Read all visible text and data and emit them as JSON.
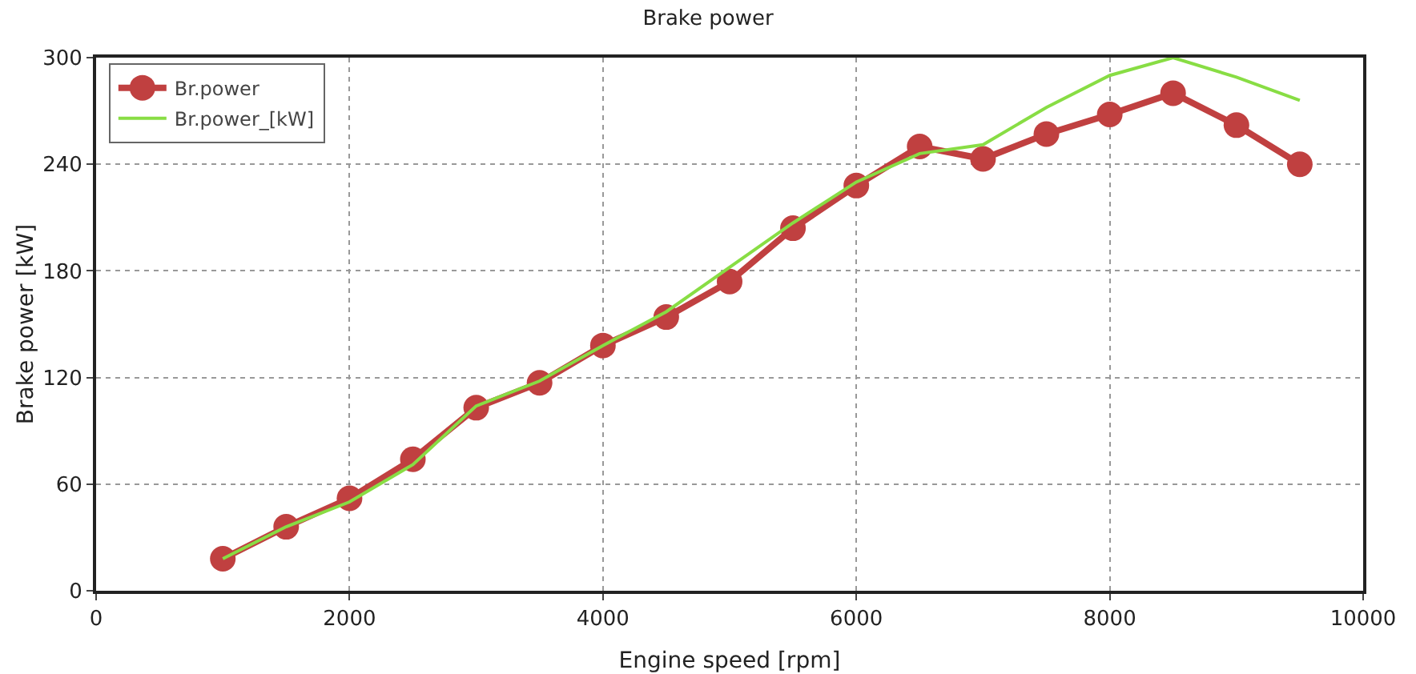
{
  "chart_data": {
    "type": "line",
    "title": "Brake power",
    "xlabel": "Engine speed [rpm]",
    "ylabel": "Brake power [kW]",
    "x": [
      1000,
      1500,
      2000,
      2500,
      3000,
      3500,
      4000,
      4500,
      5000,
      5500,
      6000,
      6500,
      7000,
      7500,
      8000,
      8500,
      9000,
      9500
    ],
    "series": [
      {
        "name": "Br.power",
        "color": "#c04040",
        "marker": "circle",
        "values": [
          18,
          36,
          52,
          74,
          103,
          117,
          138,
          154,
          174,
          204,
          228,
          250,
          243,
          257,
          268,
          280,
          262,
          240
        ]
      },
      {
        "name": "Br.power_[kW]",
        "color": "#88dd44",
        "marker": "none",
        "values": [
          18,
          36,
          50,
          71,
          104,
          118,
          138,
          157,
          182,
          207,
          230,
          246,
          251,
          272,
          290,
          300,
          289,
          276
        ]
      }
    ],
    "xlim": [
      0,
      10000
    ],
    "xticks": [
      0,
      2000,
      4000,
      6000,
      8000,
      10000
    ],
    "ylim": [
      0,
      300
    ],
    "yticks": [
      0,
      60,
      120,
      180,
      240,
      300
    ],
    "grid": true,
    "legend": "top left",
    "line_style": "solid"
  }
}
